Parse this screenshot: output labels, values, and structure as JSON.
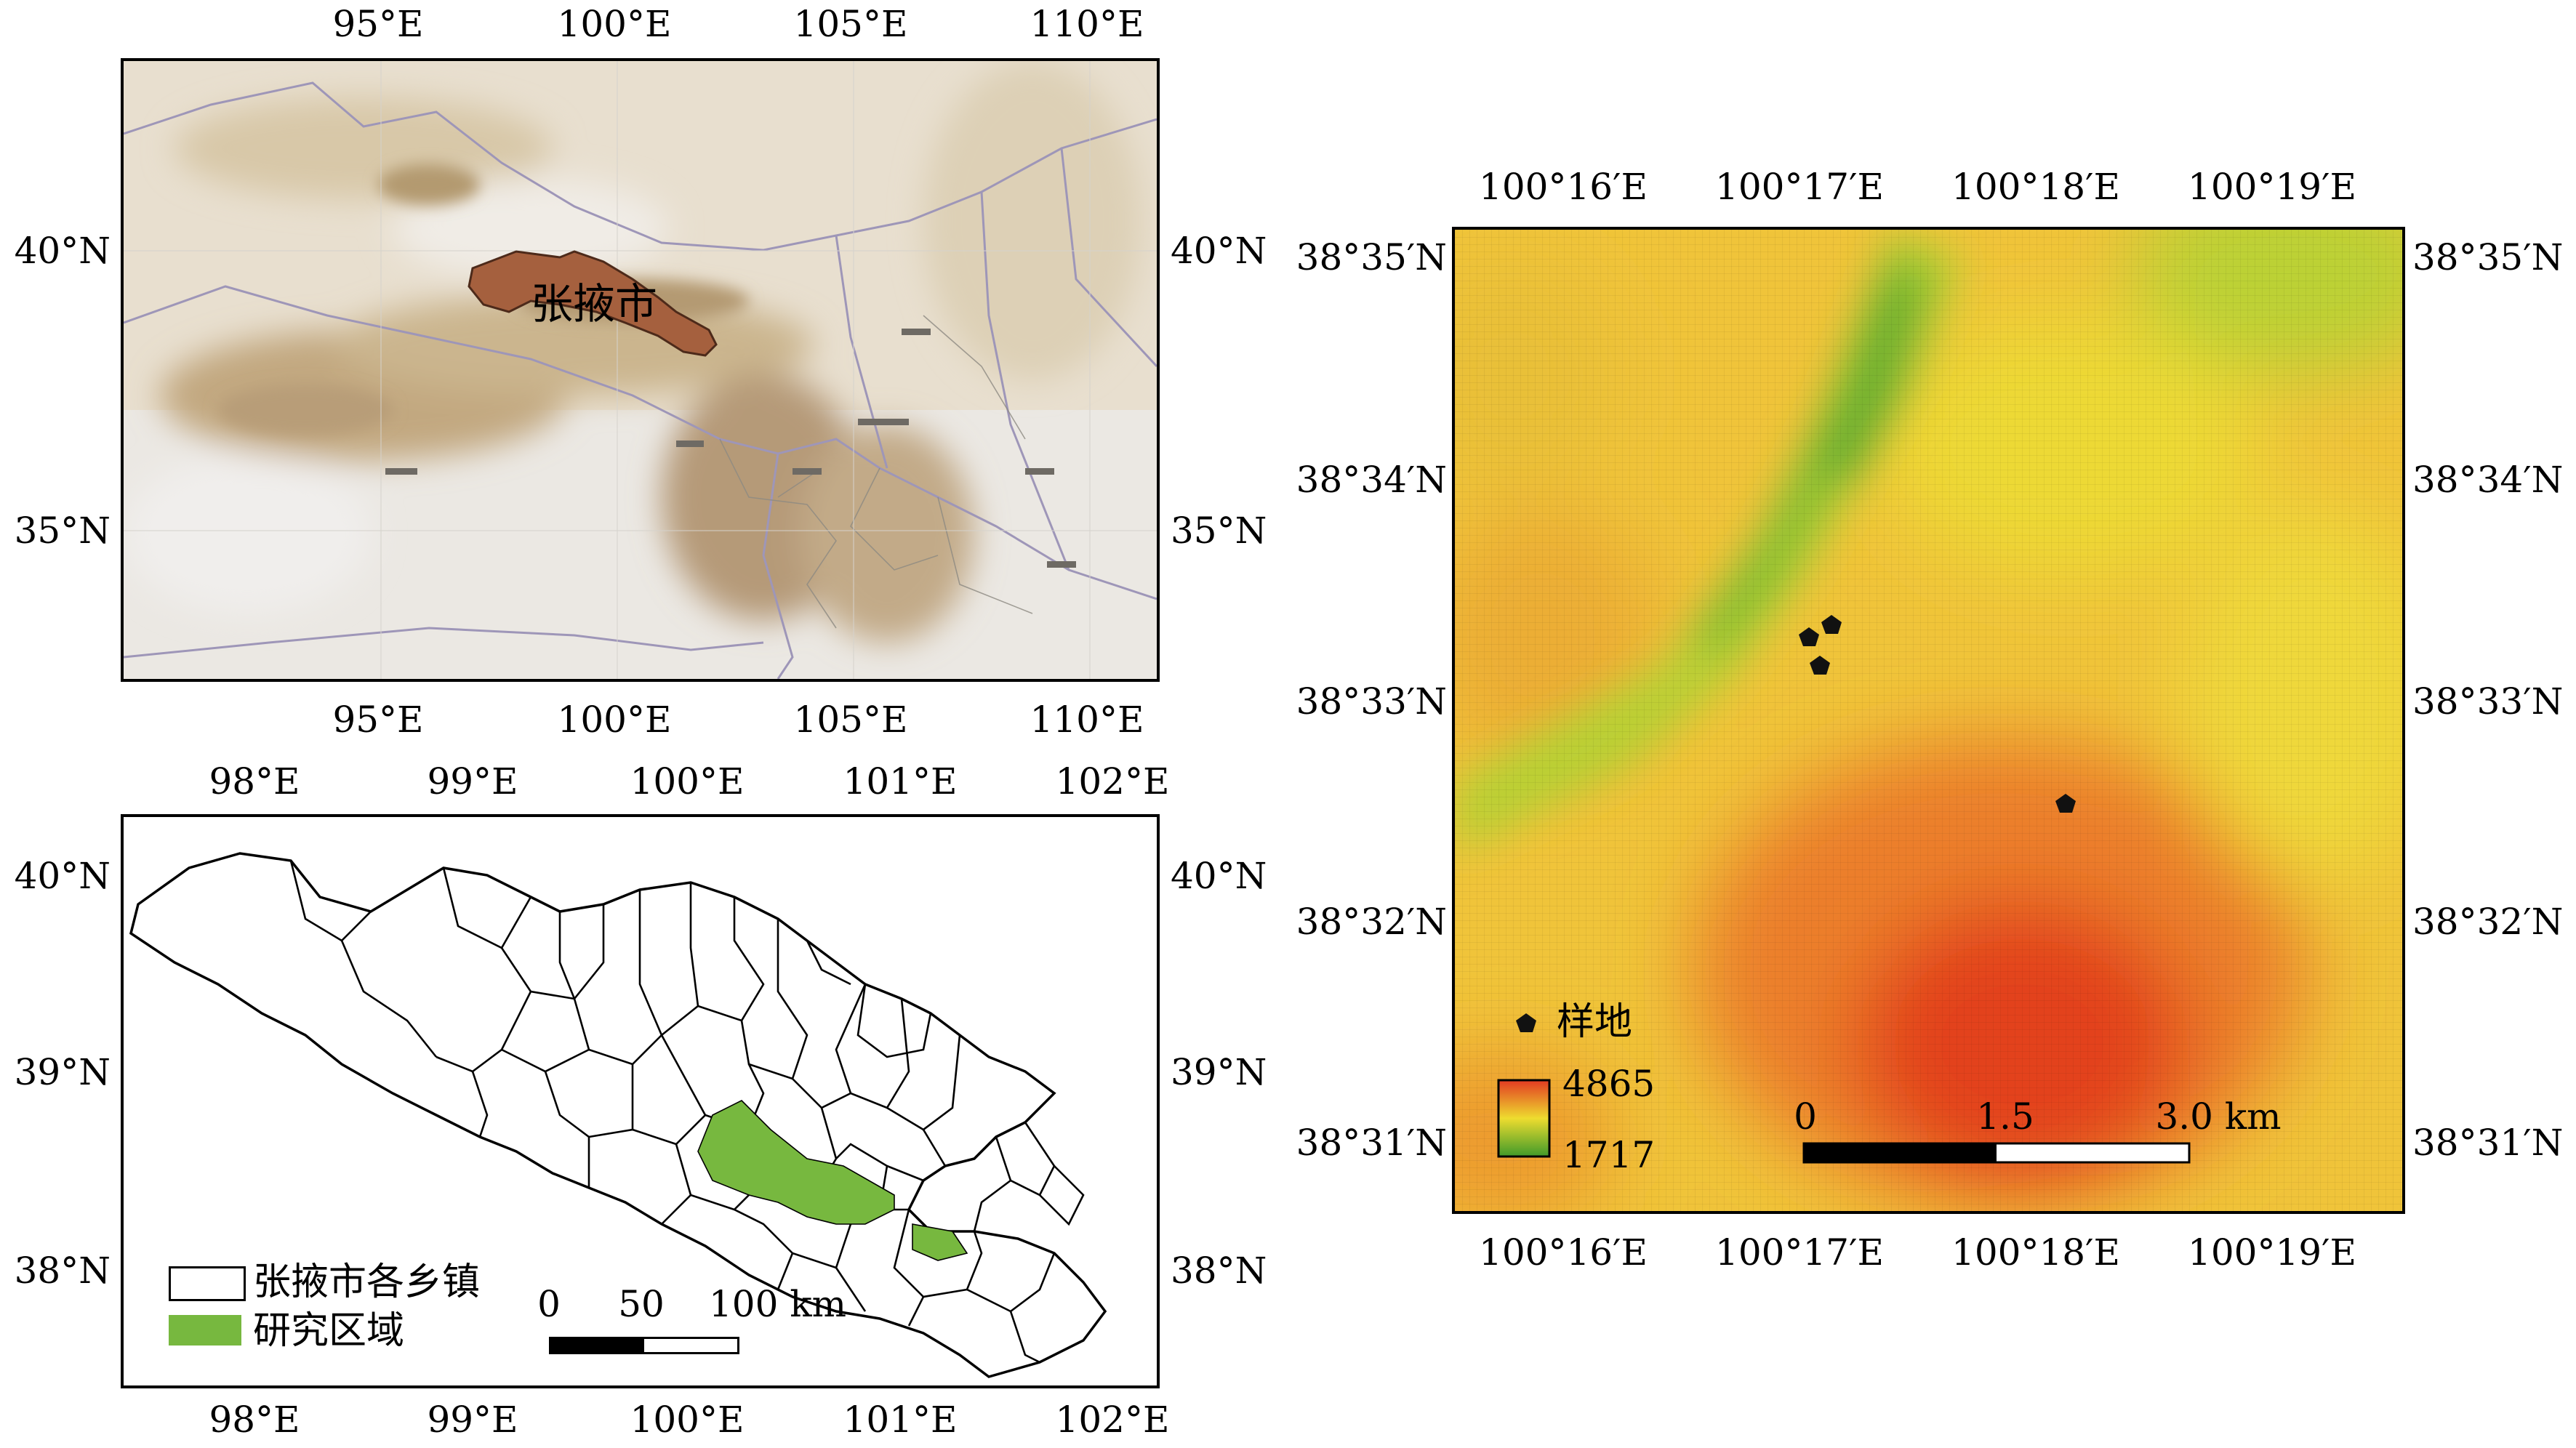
{
  "colors": {
    "frame": "#000000",
    "city_fill": "#a5603e",
    "study_area": "#77b83f",
    "dem_high": "#e23a22",
    "dem_mid": "#eedc2f",
    "dem_low": "#4a9a2a",
    "basemap": "#e6dccb"
  },
  "top_left_map": {
    "lon_ticks": [
      "95°E",
      "100°E",
      "105°E",
      "110°E"
    ],
    "lat_ticks": [
      "40°N",
      "35°N"
    ],
    "city_label": "张掖市"
  },
  "bottom_left_map": {
    "lon_ticks": [
      "98°E",
      "99°E",
      "100°E",
      "101°E",
      "102°E"
    ],
    "lat_ticks": [
      "40°N",
      "39°N",
      "38°N"
    ],
    "legend": {
      "townships": "张掖市各乡镇",
      "study_area": "研究区域"
    },
    "scale_bar": {
      "zero": "0",
      "mid": "50",
      "end": "100 km"
    }
  },
  "right_map": {
    "lon_ticks": [
      "100°16′E",
      "100°17′E",
      "100°18′E",
      "100°19′E"
    ],
    "lat_ticks": [
      "38°35′N",
      "38°34′N",
      "38°33′N",
      "38°32′N",
      "38°31′N"
    ],
    "legend": {
      "sample_plot": "样地",
      "elevation_max": "4865",
      "elevation_min": "1717"
    },
    "scale_bar": {
      "zero": "0",
      "mid": "1.5",
      "end": "3.0 km"
    }
  }
}
